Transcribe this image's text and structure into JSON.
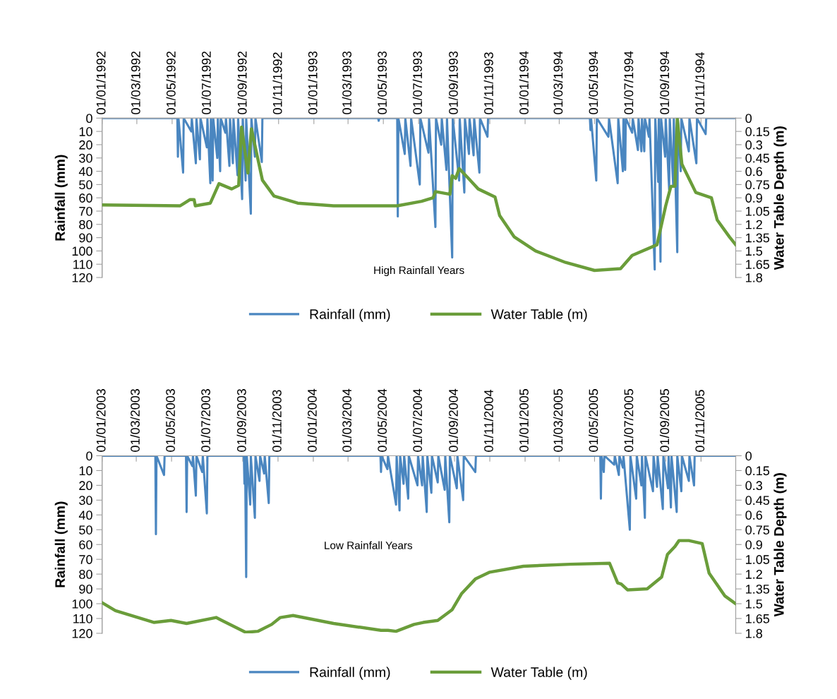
{
  "chart_data": [
    {
      "type": "line",
      "annotations": [
        "High Rainfall Years"
      ],
      "ylabel": "Rainfall (mm)",
      "y2label": "Water Table Depth (m)",
      "legend": "bottom",
      "grid": false,
      "marker": "none",
      "line_style": "solid",
      "xlim": [
        "1992-01-01",
        "1994-12-31"
      ],
      "xticks": [
        {
          "value": "1992-01-01",
          "label": "01/01/1992"
        },
        {
          "value": "1992-03-01",
          "label": "01/03/1992"
        },
        {
          "value": "1992-05-01",
          "label": "01/05/1992"
        },
        {
          "value": "1992-07-01",
          "label": "01/07/1992"
        },
        {
          "value": "1992-09-01",
          "label": "01/09/1992"
        },
        {
          "value": "1992-11-01",
          "label": "01/11/1992"
        },
        {
          "value": "1993-01-01",
          "label": "01/01/1993"
        },
        {
          "value": "1993-03-01",
          "label": "01/03/1993"
        },
        {
          "value": "1993-05-01",
          "label": "01/05/1993"
        },
        {
          "value": "1993-07-01",
          "label": "01/07/1993"
        },
        {
          "value": "1993-09-01",
          "label": "01/09/1993"
        },
        {
          "value": "1993-11-01",
          "label": "01/11/1993"
        },
        {
          "value": "1994-01-01",
          "label": "01/01/1994"
        },
        {
          "value": "1994-03-01",
          "label": "01/03/1994"
        },
        {
          "value": "1994-05-01",
          "label": "01/05/1994"
        },
        {
          "value": "1994-07-01",
          "label": "01/07/1994"
        },
        {
          "value": "1994-09-01",
          "label": "01/09/1994"
        },
        {
          "value": "1994-11-01",
          "label": "01/11/1994"
        }
      ],
      "ylim": [
        120,
        0
      ],
      "yticks": [
        0,
        10,
        20,
        30,
        40,
        50,
        60,
        70,
        80,
        90,
        100,
        110,
        120
      ],
      "y2lim": [
        1.8,
        0
      ],
      "y2ticks": [
        0,
        0.15,
        0.3,
        0.45,
        0.6,
        0.75,
        0.9,
        1.05,
        1.2,
        1.35,
        1.5,
        1.65,
        1.8
      ],
      "series": [
        {
          "name": "Rainfall (mm)",
          "color": "#4a86c0",
          "x": [
            "1992-01-01",
            "1992-05-10",
            "1992-05-11",
            "1992-05-12",
            "1992-05-20",
            "1992-05-21",
            "1992-06-03",
            "1992-06-04",
            "1992-06-11",
            "1992-06-12",
            "1992-06-18",
            "1992-06-19",
            "1992-06-30",
            "1992-07-01",
            "1992-07-06",
            "1992-07-07",
            "1992-07-10",
            "1992-07-11",
            "1992-07-18",
            "1992-07-19",
            "1992-07-23",
            "1992-07-24",
            "1992-08-01",
            "1992-08-02",
            "1992-08-08",
            "1992-08-09",
            "1992-08-14",
            "1992-08-15",
            "1992-08-22",
            "1992-08-23",
            "1992-08-30",
            "1992-08-31",
            "1992-09-05",
            "1992-09-06",
            "1992-09-14",
            "1992-09-15",
            "1992-09-21",
            "1992-09-22",
            "1992-10-03",
            "1992-10-04",
            "1993-04-22",
            "1993-04-23",
            "1993-04-24",
            "1993-05-25",
            "1993-05-26",
            "1993-05-27",
            "1993-06-07",
            "1993-06-08",
            "1993-06-17",
            "1993-06-18",
            "1993-07-03",
            "1993-07-04",
            "1993-07-18",
            "1993-07-19",
            "1993-07-30",
            "1993-07-31",
            "1993-08-09",
            "1993-08-10",
            "1993-08-18",
            "1993-08-19",
            "1993-08-28",
            "1993-08-29",
            "1993-09-09",
            "1993-09-10",
            "1993-09-18",
            "1993-09-19",
            "1993-09-26",
            "1993-09-27",
            "1993-10-04",
            "1993-10-05",
            "1993-10-14",
            "1993-10-15",
            "1993-10-28",
            "1993-10-29",
            "1994-04-23",
            "1994-04-24",
            "1994-04-25",
            "1994-05-04",
            "1994-05-05",
            "1994-05-25",
            "1994-05-26",
            "1994-06-10",
            "1994-06-11",
            "1994-06-19",
            "1994-06-20",
            "1994-06-23",
            "1994-06-24",
            "1994-07-05",
            "1994-07-06",
            "1994-07-15",
            "1994-07-16",
            "1994-07-21",
            "1994-07-22",
            "1994-07-26",
            "1994-07-27",
            "1994-08-03",
            "1994-08-04",
            "1994-08-13",
            "1994-08-14",
            "1994-08-19",
            "1994-08-20",
            "1994-08-23",
            "1994-08-24",
            "1994-08-31",
            "1994-09-01",
            "1994-09-07",
            "1994-09-08",
            "1994-09-14",
            "1994-09-15",
            "1994-09-21",
            "1994-09-22",
            "1994-09-27",
            "1994-09-28",
            "1994-10-11",
            "1994-10-12",
            "1994-10-24",
            "1994-10-25",
            "1994-11-09",
            "1994-11-10",
            "1994-12-31"
          ],
          "values": [
            0,
            0,
            29,
            0,
            41,
            0,
            10,
            0,
            34,
            0,
            31,
            0,
            22,
            0,
            49,
            0,
            47,
            0,
            30,
            0,
            40,
            0,
            11,
            0,
            36,
            0,
            34,
            0,
            43,
            0,
            61,
            0,
            47,
            0,
            72,
            0,
            29,
            0,
            33,
            0,
            0,
            2,
            0,
            0,
            74,
            0,
            27,
            0,
            36,
            0,
            50,
            0,
            26,
            0,
            82,
            0,
            20,
            0,
            39,
            0,
            105,
            0,
            47,
            0,
            56,
            0,
            27,
            0,
            28,
            0,
            41,
            0,
            14,
            0,
            0,
            9,
            0,
            47,
            0,
            14,
            0,
            49,
            0,
            40,
            0,
            39,
            0,
            11,
            0,
            24,
            0,
            25,
            0,
            25,
            0,
            14,
            0,
            114,
            0,
            48,
            0,
            108,
            0,
            29,
            0,
            54,
            0,
            51,
            0,
            101,
            0,
            40,
            0,
            25,
            0,
            34,
            0,
            12,
            0,
            0
          ]
        },
        {
          "name": "Water Table (m)",
          "color": "#6a9d3a",
          "axis": "y2",
          "x": [
            "1992-01-01",
            "1992-05-15",
            "1992-05-20",
            "1992-06-01",
            "1992-06-08",
            "1992-06-10",
            "1992-07-06",
            "1992-07-21",
            "1992-08-12",
            "1992-08-24",
            "1992-08-29",
            "1992-09-09",
            "1992-09-15",
            "1992-10-04",
            "1992-10-24",
            "1992-12-04",
            "1993-02-04",
            "1993-05-25",
            "1993-07-06",
            "1993-07-26",
            "1993-07-30",
            "1993-08-24",
            "1993-08-28",
            "1993-09-03",
            "1993-09-09",
            "1993-09-25",
            "1993-10-12",
            "1993-11-10",
            "1993-11-18",
            "1993-12-13",
            "1994-01-19",
            "1994-03-12",
            "1994-05-01",
            "1994-06-15",
            "1994-07-05",
            "1994-08-17",
            "1994-09-01",
            "1994-09-10",
            "1994-09-17",
            "1994-09-21",
            "1994-09-29",
            "1994-10-23",
            "1994-11-19",
            "1994-11-29",
            "1994-12-20",
            "1994-12-31"
          ],
          "values": [
            0.98,
            0.99,
            0.97,
            0.92,
            0.92,
            0.99,
            0.96,
            0.74,
            0.8,
            0.76,
            0.1,
            0.62,
            0.12,
            0.7,
            0.88,
            0.96,
            0.99,
            0.99,
            0.94,
            0.9,
            0.83,
            0.86,
            0.65,
            0.68,
            0.57,
            0.68,
            0.8,
            0.89,
            1.1,
            1.34,
            1.5,
            1.63,
            1.72,
            1.7,
            1.55,
            1.43,
            0.99,
            0.77,
            0.77,
            0.01,
            0.52,
            0.84,
            0.9,
            1.15,
            1.34,
            1.43
          ]
        }
      ]
    },
    {
      "type": "line",
      "annotations": [
        "Low Rainfall Years"
      ],
      "ylabel": "Rainfall (mm)",
      "y2label": "Water Table Depth (m)",
      "legend": "bottom",
      "grid": false,
      "marker": "none",
      "line_style": "solid",
      "xlim": [
        "2003-01-01",
        "2005-12-31"
      ],
      "xticks": [
        {
          "value": "2003-01-01",
          "label": "01/01/2003"
        },
        {
          "value": "2003-03-01",
          "label": "01/03/2003"
        },
        {
          "value": "2003-05-01",
          "label": "01/05/2003"
        },
        {
          "value": "2003-07-01",
          "label": "01/07/2003"
        },
        {
          "value": "2003-09-01",
          "label": "01/09/2003"
        },
        {
          "value": "2003-11-01",
          "label": "01/11/2003"
        },
        {
          "value": "2004-01-01",
          "label": "01/01/2004"
        },
        {
          "value": "2004-03-01",
          "label": "01/03/2004"
        },
        {
          "value": "2004-05-01",
          "label": "01/05/2004"
        },
        {
          "value": "2004-07-01",
          "label": "01/07/2004"
        },
        {
          "value": "2004-09-01",
          "label": "01/09/2004"
        },
        {
          "value": "2004-11-01",
          "label": "01/11/2004"
        },
        {
          "value": "2005-01-01",
          "label": "01/01/2005"
        },
        {
          "value": "2005-03-01",
          "label": "01/03/2005"
        },
        {
          "value": "2005-05-01",
          "label": "01/05/2005"
        },
        {
          "value": "2005-07-01",
          "label": "01/07/2005"
        },
        {
          "value": "2005-09-01",
          "label": "01/09/2005"
        },
        {
          "value": "2005-11-01",
          "label": "01/11/2005"
        }
      ],
      "ylim": [
        120,
        0
      ],
      "yticks": [
        0,
        10,
        20,
        30,
        40,
        50,
        60,
        70,
        80,
        90,
        100,
        110,
        120
      ],
      "y2lim": [
        1.8,
        0
      ],
      "y2ticks": [
        0,
        0.15,
        0.3,
        0.45,
        0.6,
        0.75,
        0.9,
        1.05,
        1.2,
        1.35,
        1.5,
        1.65,
        1.8
      ],
      "series": [
        {
          "name": "Rainfall (mm)",
          "color": "#4a86c0",
          "x": [
            "2003-01-01",
            "2003-04-03",
            "2003-04-04",
            "2003-04-05",
            "2003-04-18",
            "2003-04-19",
            "2003-05-26",
            "2003-05-27",
            "2003-05-28",
            "2003-06-06",
            "2003-06-07",
            "2003-06-12",
            "2003-06-13",
            "2003-06-23",
            "2003-06-24",
            "2003-07-01",
            "2003-07-02",
            "2003-09-03",
            "2003-09-04",
            "2003-09-05",
            "2003-09-07",
            "2003-09-08",
            "2003-09-14",
            "2003-09-15",
            "2003-09-22",
            "2003-09-23",
            "2003-09-30",
            "2003-10-01",
            "2003-10-08",
            "2003-10-09",
            "2003-10-16",
            "2003-10-17",
            "2004-04-26",
            "2004-04-27",
            "2004-04-28",
            "2004-05-08",
            "2004-05-09",
            "2004-05-23",
            "2004-05-24",
            "2004-05-29",
            "2004-05-30",
            "2004-06-05",
            "2004-06-06",
            "2004-06-13",
            "2004-06-14",
            "2004-06-29",
            "2004-06-30",
            "2004-07-07",
            "2004-07-08",
            "2004-07-15",
            "2004-07-16",
            "2004-07-23",
            "2004-07-24",
            "2004-08-03",
            "2004-08-04",
            "2004-08-15",
            "2004-08-16",
            "2004-08-23",
            "2004-08-24",
            "2004-09-05",
            "2004-09-06",
            "2004-09-16",
            "2004-09-17",
            "2004-10-07",
            "2004-10-08",
            "2005-05-11",
            "2005-05-12",
            "2005-05-13",
            "2005-05-17",
            "2005-05-18",
            "2005-06-04",
            "2005-06-05",
            "2005-06-12",
            "2005-06-13",
            "2005-06-19",
            "2005-06-20",
            "2005-07-01",
            "2005-07-02",
            "2005-07-12",
            "2005-07-13",
            "2005-07-21",
            "2005-07-22",
            "2005-07-27",
            "2005-07-28",
            "2005-08-10",
            "2005-08-11",
            "2005-08-17",
            "2005-08-18",
            "2005-08-27",
            "2005-08-28",
            "2005-09-05",
            "2005-09-06",
            "2005-09-10",
            "2005-09-11",
            "2005-09-20",
            "2005-09-21",
            "2005-09-28",
            "2005-09-29",
            "2005-10-11",
            "2005-10-12",
            "2005-10-20",
            "2005-10-21",
            "2005-12-31"
          ],
          "values": [
            0,
            0,
            53,
            0,
            13,
            0,
            0,
            38,
            0,
            7,
            0,
            27,
            0,
            11,
            0,
            39,
            0,
            0,
            19,
            0,
            82,
            0,
            33,
            0,
            42,
            0,
            17,
            0,
            12,
            0,
            32,
            0,
            0,
            11,
            0,
            9,
            0,
            33,
            0,
            37,
            0,
            19,
            0,
            29,
            0,
            20,
            0,
            20,
            0,
            38,
            0,
            25,
            0,
            18,
            0,
            23,
            0,
            45,
            0,
            22,
            0,
            30,
            0,
            11,
            0,
            0,
            29,
            0,
            11,
            0,
            6,
            0,
            13,
            0,
            8,
            0,
            50,
            0,
            29,
            0,
            20,
            0,
            42,
            0,
            24,
            0,
            21,
            0,
            36,
            0,
            22,
            0,
            35,
            0,
            38,
            0,
            24,
            0,
            17,
            0,
            20,
            0,
            0
          ]
        },
        {
          "name": "Water Table (m)",
          "color": "#6a9d3a",
          "axis": "y2",
          "x": [
            "2003-01-01",
            "2003-01-24",
            "2003-04-01",
            "2003-04-30",
            "2003-05-27",
            "2003-07-17",
            "2003-07-27",
            "2003-09-06",
            "2003-09-27",
            "2003-10-21",
            "2003-11-05",
            "2003-11-27",
            "2004-02-05",
            "2004-04-27",
            "2004-05-09",
            "2004-05-23",
            "2004-06-23",
            "2004-07-09",
            "2004-08-03",
            "2004-08-28",
            "2004-09-13",
            "2004-10-07",
            "2004-11-01",
            "2004-12-29",
            "2005-03-20",
            "2005-05-27",
            "2005-06-10",
            "2005-06-16",
            "2005-06-27",
            "2005-07-31",
            "2005-08-25",
            "2005-09-04",
            "2005-09-17",
            "2005-09-24",
            "2005-10-11",
            "2005-11-03",
            "2005-11-15",
            "2005-12-12",
            "2005-12-31"
          ],
          "values": [
            1.49,
            1.57,
            1.69,
            1.67,
            1.7,
            1.64,
            1.67,
            1.79,
            1.78,
            1.71,
            1.64,
            1.62,
            1.7,
            1.77,
            1.77,
            1.78,
            1.71,
            1.69,
            1.67,
            1.56,
            1.4,
            1.25,
            1.18,
            1.12,
            1.1,
            1.09,
            1.29,
            1.3,
            1.36,
            1.35,
            1.23,
            1.0,
            0.92,
            0.86,
            0.86,
            0.89,
            1.19,
            1.42,
            1.5
          ]
        }
      ]
    }
  ]
}
